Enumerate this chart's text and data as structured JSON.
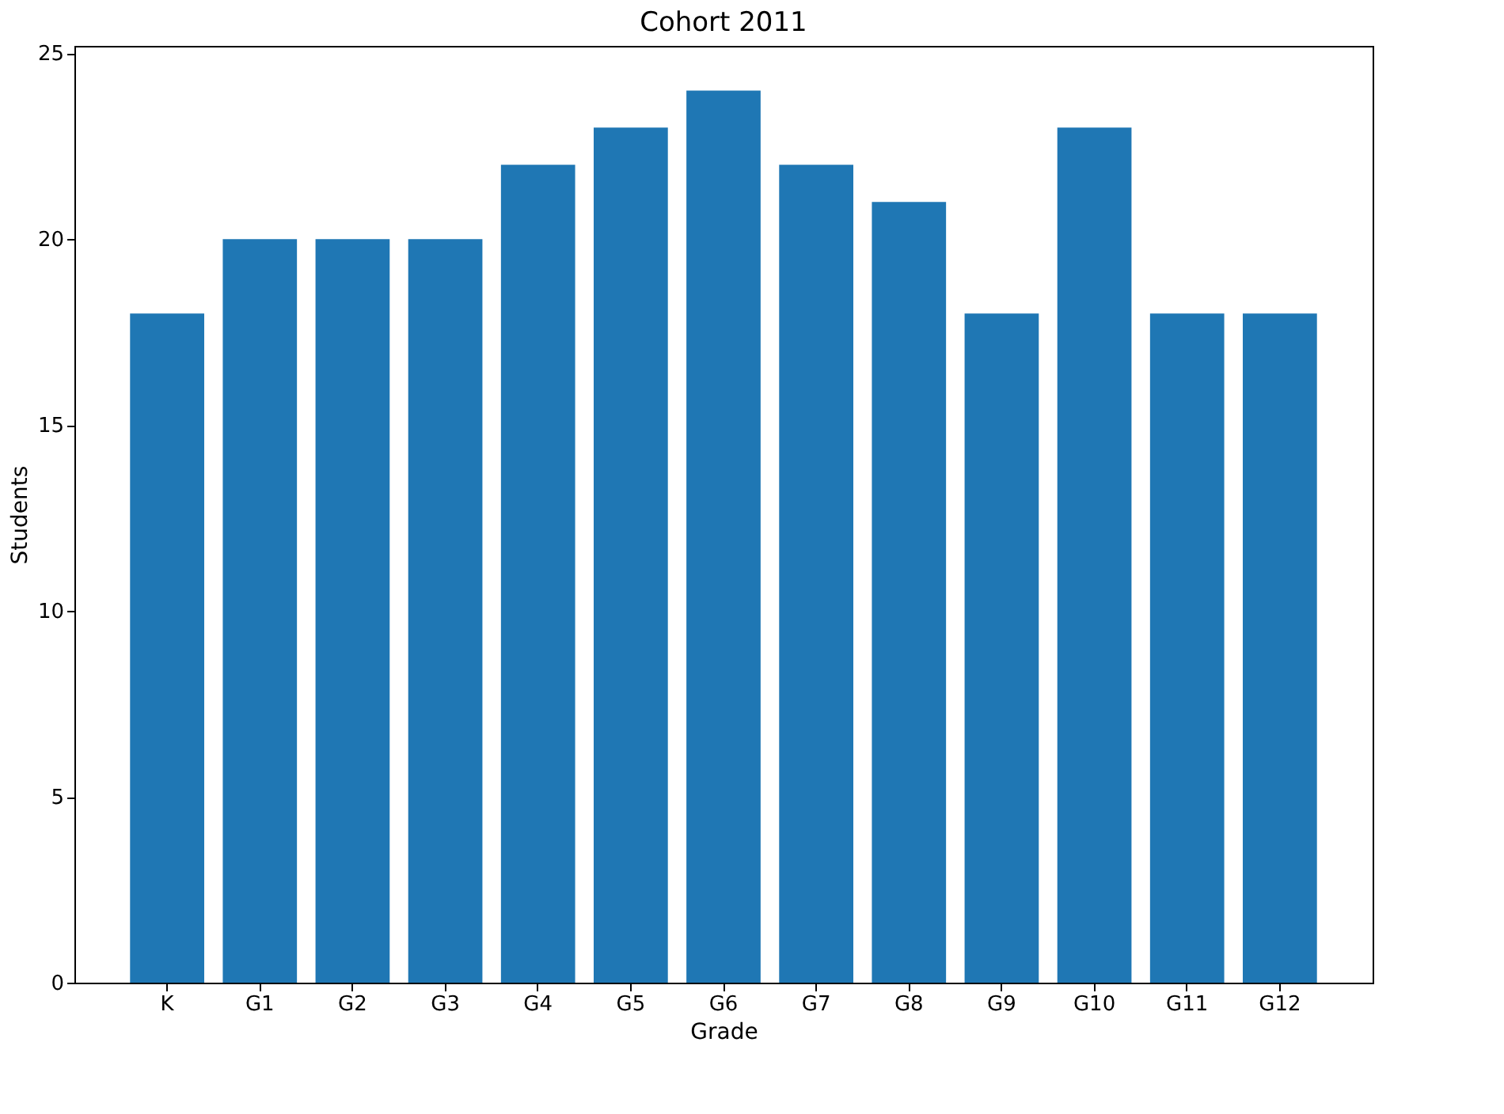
{
  "chart_data": {
    "type": "bar",
    "title": "Cohort 2011",
    "xlabel": "Grade",
    "ylabel": "Students",
    "categories": [
      "K",
      "G1",
      "G2",
      "G3",
      "G4",
      "G5",
      "G6",
      "G7",
      "G8",
      "G9",
      "G10",
      "G11",
      "G12"
    ],
    "values": [
      18,
      20,
      20,
      20,
      22,
      23,
      24,
      22,
      21,
      18,
      23,
      18,
      18
    ],
    "color": "#1f77b4",
    "ylim": [
      0,
      25.2
    ],
    "yticks": [
      0,
      5,
      10,
      15,
      20,
      25
    ],
    "grid": false
  }
}
